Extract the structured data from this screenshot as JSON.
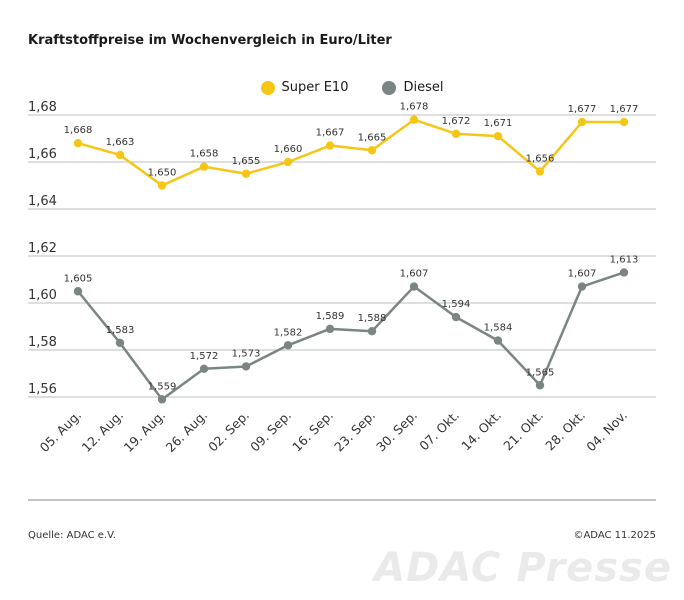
{
  "title": "Kraftstoffpreise im Wochenvergleich in Euro/Liter",
  "source": "Quelle: ADAC e.V.",
  "copyright": "©ADAC 11.2025",
  "watermark": "ADAC Presse",
  "chart_data": {
    "type": "line",
    "title": "Kraftstoffpreise im Wochenvergleich in Euro/Liter",
    "xlabel": "",
    "ylabel": "",
    "categories": [
      "05. Aug.",
      "12. Aug.",
      "19. Aug.",
      "26. Aug.",
      "02. Sep.",
      "09. Sep.",
      "16. Sep.",
      "23. Sep.",
      "30. Sep.",
      "07. Okt.",
      "14. Okt.",
      "21. Okt.",
      "28. Okt.",
      "04. Nov."
    ],
    "ylim": [
      1.55,
      1.68
    ],
    "yticks": [
      "1,56",
      "1,58",
      "1,60",
      "1,62",
      "1,64",
      "1,66",
      "1,68"
    ],
    "ytick_values": [
      1.56,
      1.58,
      1.6,
      1.62,
      1.64,
      1.66,
      1.68
    ],
    "grid": true,
    "legend_position": "top-center",
    "series": [
      {
        "name": "Super E10",
        "color": "#f6c617",
        "values": [
          1.668,
          1.663,
          1.65,
          1.658,
          1.655,
          1.66,
          1.667,
          1.665,
          1.678,
          1.672,
          1.671,
          1.656,
          1.677,
          1.677
        ],
        "labels": [
          "1,668",
          "1,663",
          "1,650",
          "1,658",
          "1,655",
          "1,660",
          "1,667",
          "1,665",
          "1,678",
          "1,672",
          "1,671",
          "1,656",
          "1,677",
          "1,677"
        ]
      },
      {
        "name": "Diesel",
        "color": "#7b8684",
        "values": [
          1.605,
          1.583,
          1.559,
          1.572,
          1.573,
          1.582,
          1.589,
          1.588,
          1.607,
          1.594,
          1.584,
          1.565,
          1.607,
          1.613
        ],
        "labels": [
          "1,605",
          "1,583",
          "1,559",
          "1,572",
          "1,573",
          "1,582",
          "1,589",
          "1,588",
          "1,607",
          "1,594",
          "1,584",
          "1,565",
          "1,607",
          "1,613"
        ]
      }
    ]
  }
}
